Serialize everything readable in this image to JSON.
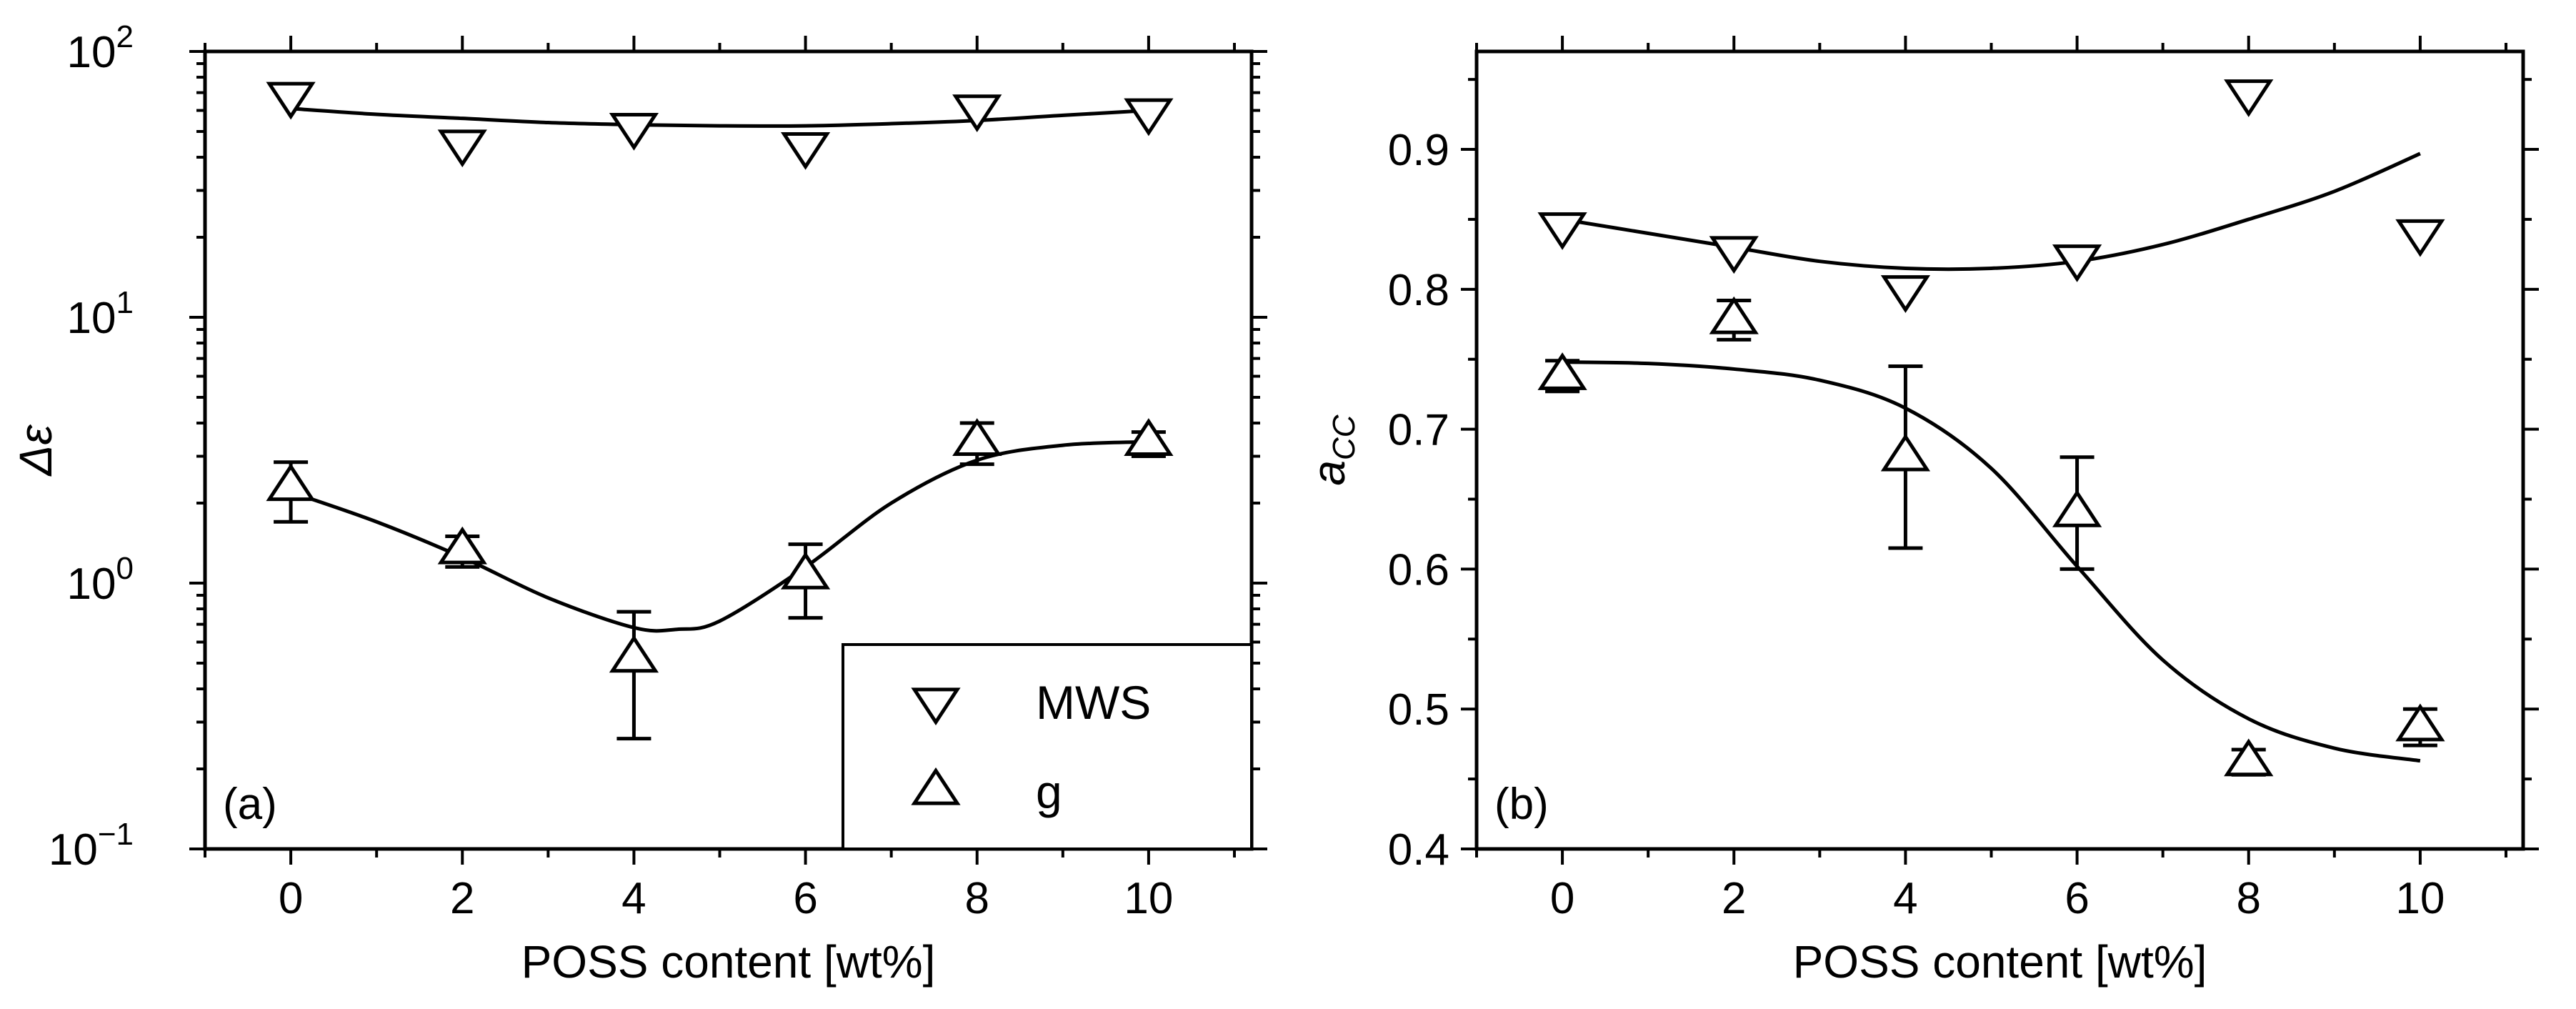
{
  "chart_data": [
    {
      "id": "a",
      "type": "scatter",
      "panel_label": "(a)",
      "xlabel": "POSS content [wt%]",
      "ylabel": "Δε",
      "ylabel_math": true,
      "yscale": "log",
      "xlim": [
        -1,
        11.2
      ],
      "ylim": [
        0.1,
        100
      ],
      "xticks": [
        0,
        2,
        4,
        6,
        8,
        10
      ],
      "yticks": [
        {
          "value": 0.1,
          "base": "10",
          "exp": "−1"
        },
        {
          "value": 1,
          "base": "10",
          "exp": "0"
        },
        {
          "value": 10,
          "base": "10",
          "exp": "1"
        },
        {
          "value": 100,
          "base": "10",
          "exp": "2"
        }
      ],
      "legend": {
        "position": "bottom-right",
        "entries": [
          {
            "label": "MWS",
            "marker": "triangle-down"
          },
          {
            "label": "g",
            "marker": "triangle-up"
          }
        ]
      },
      "series": [
        {
          "name": "MWS",
          "marker": "triangle-down",
          "x": [
            0,
            2,
            4,
            6,
            8,
            10
          ],
          "y": [
            68,
            45,
            52,
            44,
            61,
            59
          ],
          "fit": {
            "x": [
              0,
              1,
              2,
              3,
              4,
              5,
              6,
              7,
              8,
              9,
              10
            ],
            "y": [
              61,
              58,
              56,
              54,
              53,
              52.5,
              52.5,
              53.5,
              55,
              57.5,
              60
            ]
          }
        },
        {
          "name": "g",
          "marker": "triangle-up",
          "x": [
            0,
            2,
            4,
            6,
            8,
            10
          ],
          "y": [
            2.3,
            1.33,
            0.52,
            1.07,
            3.4,
            3.4
          ],
          "err_low": [
            1.7,
            1.15,
            0.26,
            0.74,
            2.8,
            3.0
          ],
          "err_high": [
            2.85,
            1.5,
            0.78,
            1.4,
            4.0,
            3.7
          ],
          "fit": {
            "x": [
              0,
              1,
              2,
              3,
              4,
              4.5,
              5,
              6,
              7,
              8,
              9,
              10
            ],
            "y": [
              2.2,
              1.7,
              1.25,
              0.88,
              0.68,
              0.67,
              0.72,
              1.15,
              2.0,
              2.9,
              3.3,
              3.4
            ]
          }
        }
      ]
    },
    {
      "id": "b",
      "type": "scatter",
      "panel_label": "(b)",
      "xlabel": "POSS content [wt%]",
      "ylabel": "a",
      "ylabel_sub": "CC",
      "yscale": "linear",
      "xlim": [
        -1,
        11.2
      ],
      "ylim": [
        0.4,
        0.97
      ],
      "xticks": [
        0,
        2,
        4,
        6,
        8,
        10
      ],
      "yticks": [
        {
          "value": 0.4,
          "label": "0.4"
        },
        {
          "value": 0.5,
          "label": "0.5"
        },
        {
          "value": 0.6,
          "label": "0.6"
        },
        {
          "value": 0.7,
          "label": "0.7"
        },
        {
          "value": 0.8,
          "label": "0.8"
        },
        {
          "value": 0.9,
          "label": "0.9"
        }
      ],
      "series": [
        {
          "name": "MWS",
          "marker": "triangle-down",
          "x": [
            0,
            2,
            4,
            6,
            8,
            10
          ],
          "y": [
            0.845,
            0.828,
            0.8,
            0.822,
            0.94,
            0.84
          ],
          "fit": {
            "x": [
              0,
              1,
              2,
              3,
              4,
              5,
              6,
              7,
              8,
              9,
              10
            ],
            "y": [
              0.85,
              0.84,
              0.83,
              0.82,
              0.815,
              0.815,
              0.82,
              0.832,
              0.85,
              0.87,
              0.897
            ]
          }
        },
        {
          "name": "g",
          "marker": "triangle-up",
          "x": [
            0,
            2,
            4,
            6,
            8,
            10
          ],
          "y": [
            0.738,
            0.778,
            0.68,
            0.64,
            0.462,
            0.487
          ],
          "err_low": [
            0.727,
            0.764,
            0.615,
            0.6,
            0.453,
            0.474
          ],
          "err_high": [
            0.749,
            0.792,
            0.745,
            0.68,
            0.471,
            0.5
          ],
          "fit": {
            "x": [
              0,
              1,
              2,
              3,
              4,
              5,
              6,
              7,
              8,
              9,
              10
            ],
            "y": [
              0.748,
              0.747,
              0.743,
              0.735,
              0.715,
              0.672,
              0.602,
              0.535,
              0.493,
              0.472,
              0.463
            ]
          }
        }
      ]
    }
  ]
}
